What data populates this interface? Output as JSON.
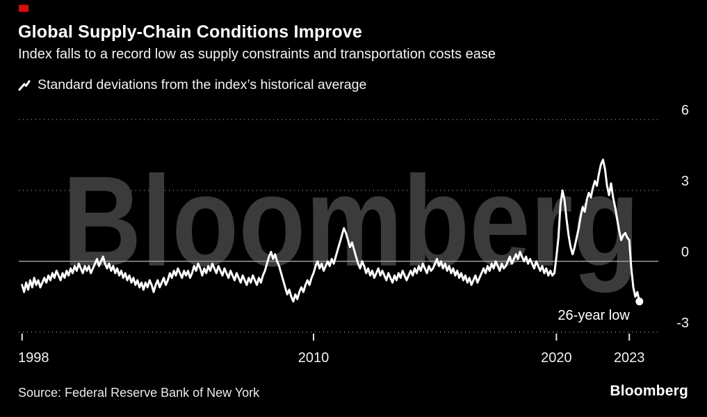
{
  "header": {
    "title": "Global Supply-Chain Conditions Improve",
    "subtitle": "Index falls to a record low as supply constraints and transportation costs ease"
  },
  "legend": {
    "key_icon": "line-sample-icon",
    "label": "Standard deviations from the index’s historical average"
  },
  "annotation": {
    "label": "26-year low"
  },
  "watermark": "Bloomberg",
  "footer": {
    "source": "Source: Federal Reserve Bank of New York",
    "logo": "Bloomberg"
  },
  "colors": {
    "background": "#000000",
    "line": "#ffffff",
    "grid_dotted": "#6a6a6a",
    "zero_line": "#9b9b9b",
    "watermark": "#3b3b3b",
    "accent_red": "#e00b09",
    "text": "#ffffff"
  },
  "chart_data": {
    "type": "line",
    "title": "Global Supply-Chain Conditions Improve",
    "xlabel": "",
    "ylabel": "Standard deviations from the index's historical average",
    "legend_position": "top-left",
    "grid": "dotted horizontal",
    "ylim": [
      -3,
      6
    ],
    "y_ticks": [
      6,
      3,
      0,
      -3
    ],
    "y_tick_labels": [
      "6",
      "3",
      "0",
      "-3"
    ],
    "x_tick_years": [
      1998,
      2010,
      2020,
      2023
    ],
    "x_tick_labels": [
      "1998",
      "2010",
      "2020",
      "2023"
    ],
    "start_year": 1998,
    "points_per_year": 12,
    "end_label": "26-year low",
    "end_value": -1.7,
    "values": [
      -1.0,
      -1.3,
      -0.9,
      -1.2,
      -0.8,
      -1.1,
      -0.7,
      -1.0,
      -0.8,
      -1.1,
      -0.9,
      -0.7,
      -0.9,
      -0.6,
      -0.8,
      -0.5,
      -0.7,
      -0.4,
      -0.6,
      -0.8,
      -0.5,
      -0.7,
      -0.4,
      -0.6,
      -0.3,
      -0.5,
      -0.2,
      -0.4,
      -0.1,
      -0.3,
      -0.5,
      -0.2,
      -0.4,
      -0.2,
      -0.5,
      -0.3,
      -0.1,
      0.1,
      -0.2,
      0.0,
      0.2,
      -0.1,
      -0.3,
      -0.1,
      -0.4,
      -0.2,
      -0.5,
      -0.3,
      -0.6,
      -0.4,
      -0.7,
      -0.5,
      -0.8,
      -0.6,
      -0.9,
      -0.7,
      -1.0,
      -0.8,
      -1.1,
      -0.9,
      -1.2,
      -0.9,
      -1.1,
      -0.8,
      -1.0,
      -1.3,
      -1.0,
      -0.8,
      -1.1,
      -0.9,
      -0.7,
      -1.0,
      -0.8,
      -0.5,
      -0.7,
      -0.4,
      -0.6,
      -0.3,
      -0.5,
      -0.7,
      -0.4,
      -0.6,
      -0.4,
      -0.7,
      -0.5,
      -0.2,
      -0.4,
      -0.1,
      -0.3,
      -0.6,
      -0.3,
      -0.5,
      -0.2,
      -0.4,
      -0.1,
      -0.3,
      -0.5,
      -0.2,
      -0.4,
      -0.6,
      -0.3,
      -0.5,
      -0.7,
      -0.4,
      -0.6,
      -0.8,
      -0.5,
      -0.7,
      -0.9,
      -0.6,
      -0.8,
      -1.0,
      -0.7,
      -0.9,
      -0.6,
      -0.8,
      -1.0,
      -0.7,
      -0.9,
      -0.6,
      -0.4,
      -0.1,
      0.2,
      0.4,
      0.1,
      0.3,
      0.0,
      -0.2,
      -0.5,
      -0.8,
      -1.1,
      -1.4,
      -1.2,
      -1.5,
      -1.7,
      -1.4,
      -1.6,
      -1.3,
      -1.1,
      -1.3,
      -1.0,
      -0.8,
      -1.0,
      -0.7,
      -0.5,
      -0.2,
      0.0,
      -0.3,
      -0.1,
      -0.4,
      -0.2,
      0.0,
      -0.2,
      0.1,
      -0.1,
      0.2,
      0.5,
      0.8,
      1.1,
      1.4,
      1.2,
      0.9,
      0.6,
      0.8,
      0.5,
      0.2,
      -0.1,
      -0.3,
      0.0,
      -0.2,
      -0.5,
      -0.3,
      -0.6,
      -0.4,
      -0.7,
      -0.5,
      -0.3,
      -0.6,
      -0.4,
      -0.6,
      -0.8,
      -0.5,
      -0.7,
      -0.9,
      -0.6,
      -0.8,
      -0.5,
      -0.7,
      -0.4,
      -0.6,
      -0.8,
      -0.6,
      -0.4,
      -0.6,
      -0.3,
      -0.5,
      -0.2,
      -0.4,
      -0.1,
      -0.3,
      -0.5,
      -0.2,
      -0.4,
      -0.3,
      -0.1,
      0.1,
      -0.2,
      0.0,
      -0.3,
      -0.1,
      -0.4,
      -0.2,
      -0.5,
      -0.3,
      -0.6,
      -0.4,
      -0.7,
      -0.5,
      -0.8,
      -0.6,
      -0.9,
      -0.7,
      -1.0,
      -0.8,
      -0.6,
      -0.9,
      -0.7,
      -0.5,
      -0.3,
      -0.5,
      -0.2,
      -0.4,
      -0.1,
      -0.3,
      0.0,
      -0.2,
      -0.4,
      -0.1,
      -0.3,
      -0.2,
      0.0,
      0.2,
      -0.1,
      0.1,
      0.3,
      0.1,
      0.4,
      0.2,
      0.0,
      0.2,
      -0.1,
      0.1,
      -0.1,
      -0.3,
      0.0,
      -0.2,
      -0.4,
      -0.2,
      -0.5,
      -0.3,
      -0.6,
      -0.4,
      -0.6,
      -0.5,
      0.2,
      1.0,
      2.4,
      3.0,
      2.6,
      1.8,
      1.1,
      0.6,
      0.3,
      0.6,
      1.0,
      1.4,
      1.9,
      2.3,
      2.1,
      2.6,
      2.9,
      2.7,
      3.1,
      3.4,
      3.2,
      3.7,
      4.1,
      4.3,
      3.9,
      3.2,
      2.8,
      3.3,
      2.7,
      2.3,
      1.8,
      1.3,
      0.9,
      1.1,
      1.2,
      1.0,
      0.9,
      -0.3,
      -1.1,
      -1.5,
      -1.3,
      -1.7
    ]
  }
}
